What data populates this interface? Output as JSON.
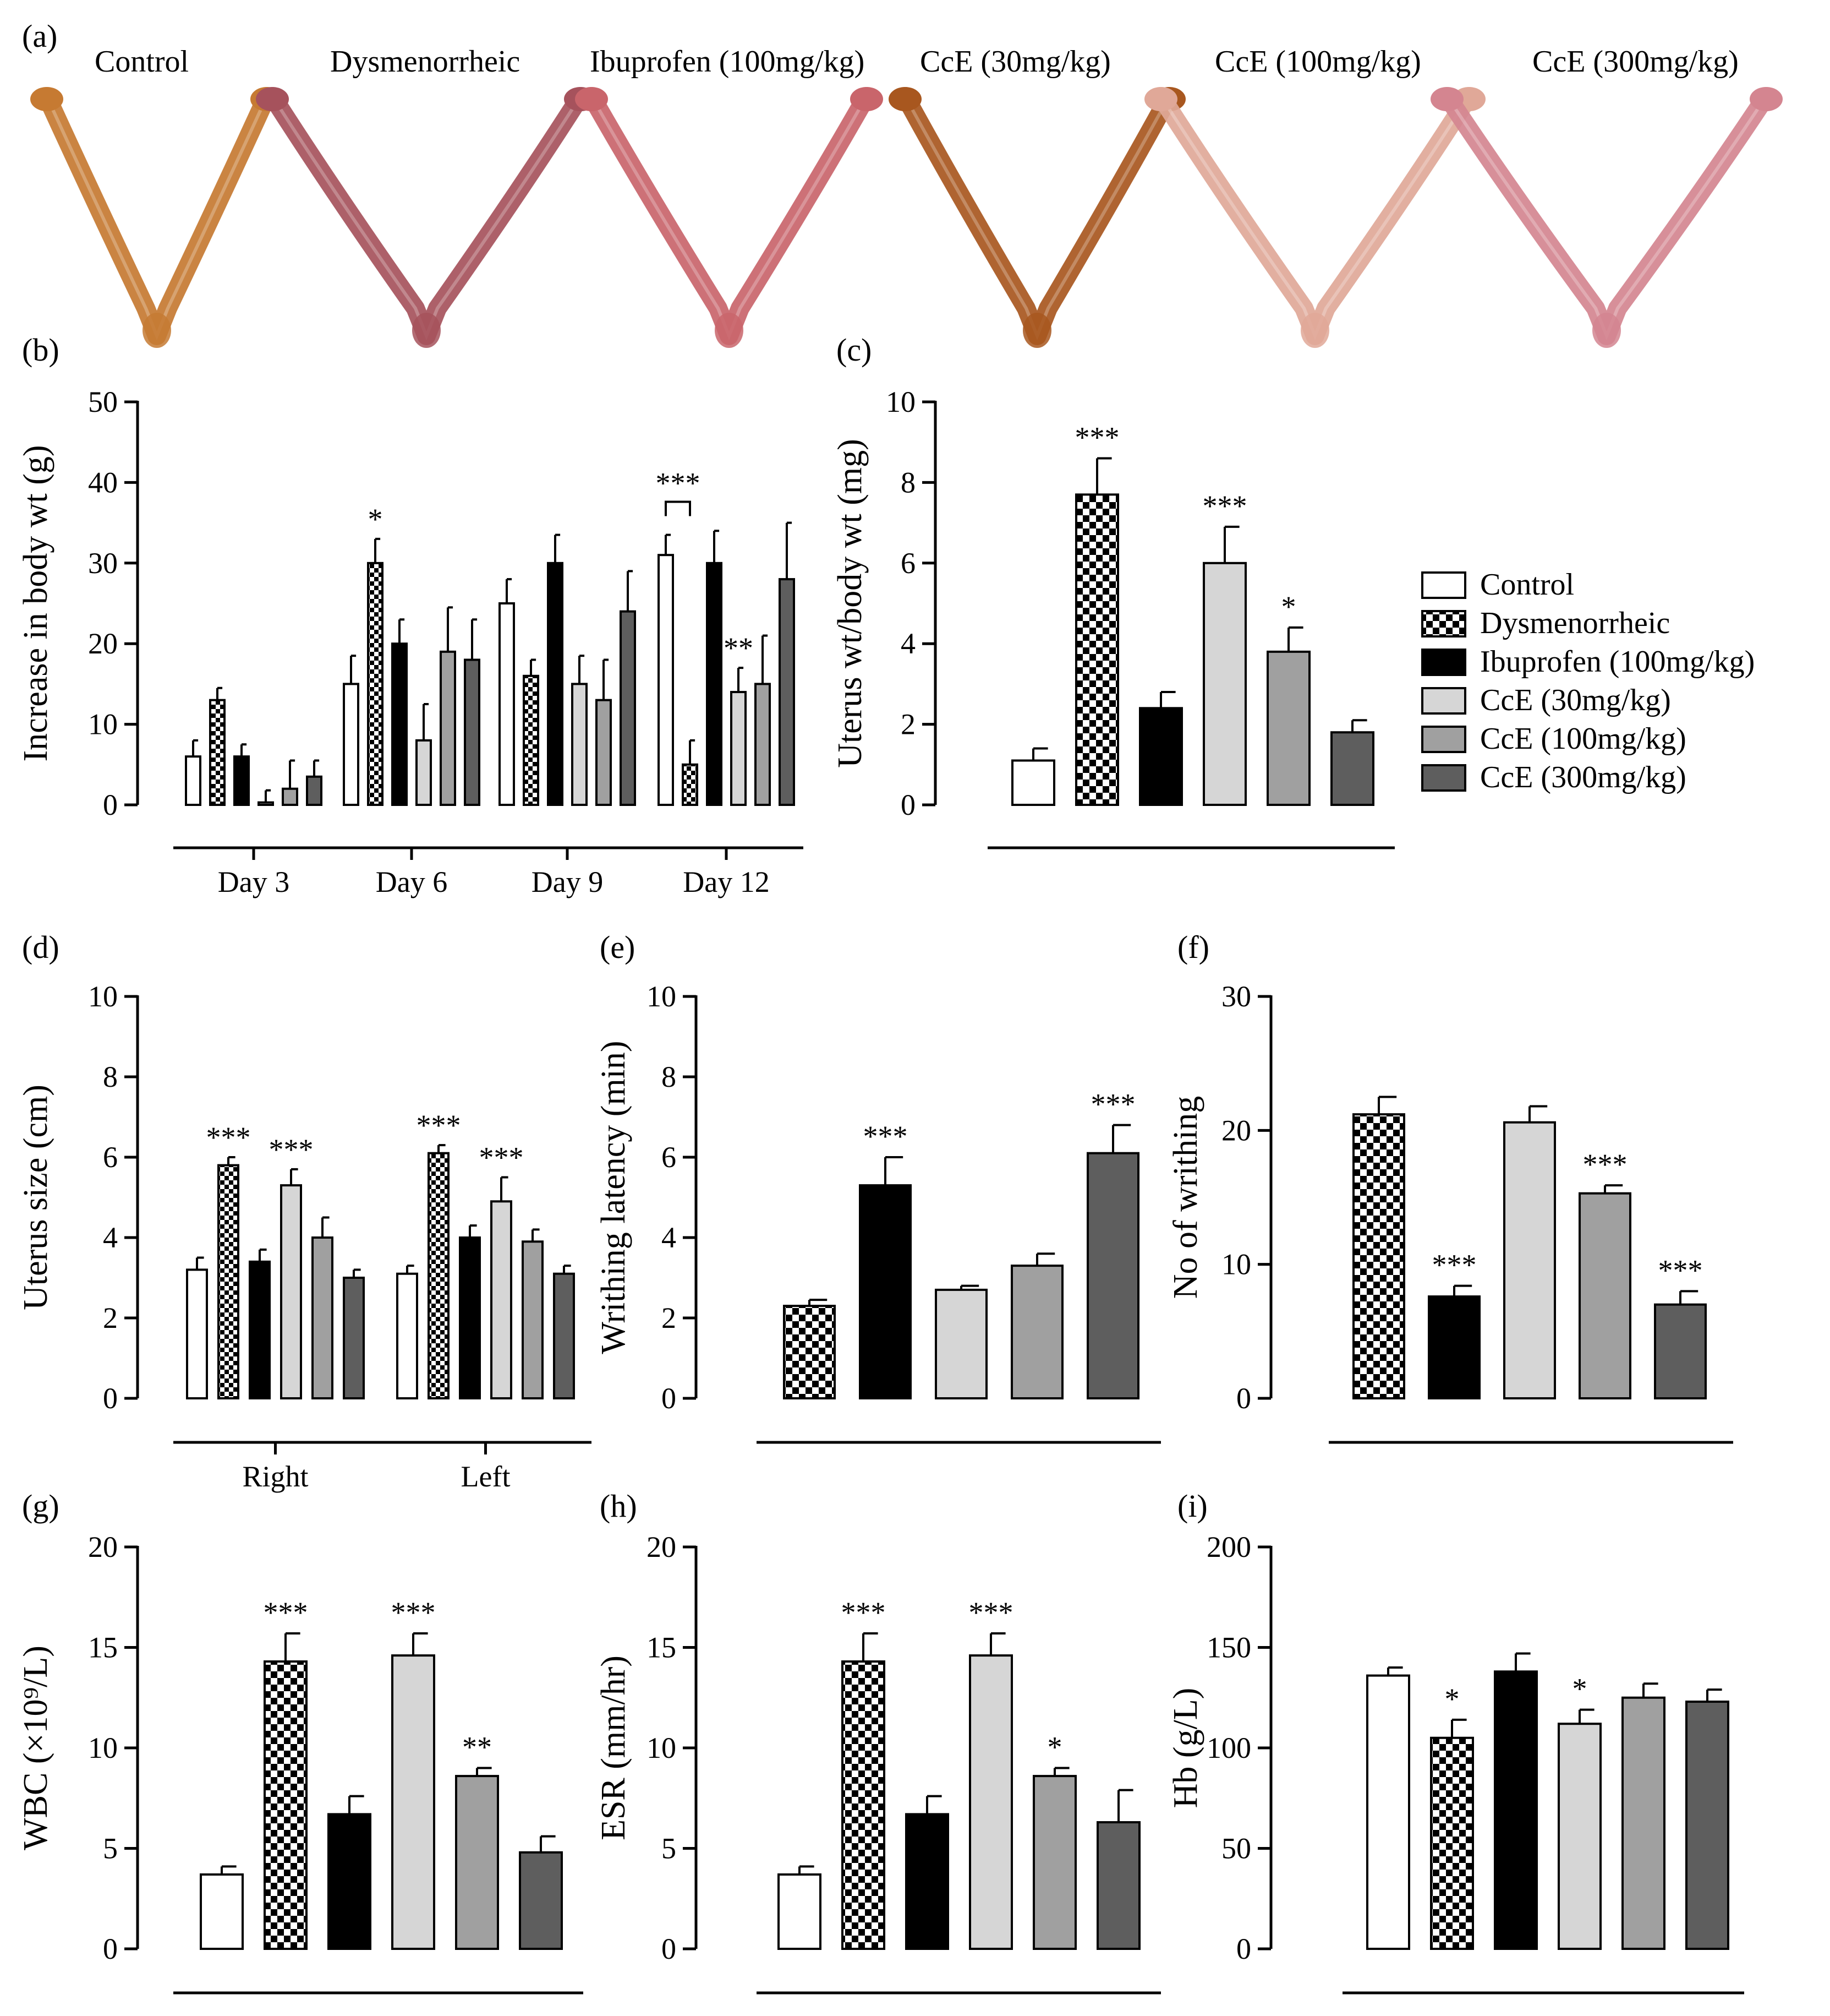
{
  "figure": {
    "photo_panel": {
      "letter": "(a)",
      "labels": [
        "Control",
        "Dysmenorrheic",
        "Ibuprofen (100mg/kg)",
        "CcE (30mg/kg)",
        "CcE (100mg/kg)",
        "CcE (300mg/kg)"
      ],
      "tissue_colors": [
        "#c67a32",
        "#a6525c",
        "#c9656b",
        "#a8571f",
        "#e0a898",
        "#d48590"
      ]
    },
    "groups": [
      "Control",
      "Dysmenorrheic",
      "Ibuprofen (100mg/kg)",
      "CcE (30mg/kg)",
      "CcE (100mg/kg)",
      "CcE (300mg/kg)"
    ],
    "fills": [
      "#ffffff",
      "checker",
      "#000000",
      "#d6d6d6",
      "#a0a0a0",
      "#5e5e5e"
    ],
    "legend_entries": [
      "Control",
      "Dysmenorrheic",
      "Ibuprofen (100mg/kg)",
      "CcE (30mg/kg)",
      "CcE (100mg/kg)",
      "CcE (300mg/kg)"
    ]
  },
  "chart_data": [
    {
      "id": "b",
      "letter": "(b)",
      "type": "bar",
      "ylabel": "Increase in body wt (g)",
      "ylim": [
        0,
        50
      ],
      "yticks": [
        0,
        10,
        20,
        30,
        40,
        50
      ],
      "categories": [
        "Day 3",
        "Day 6",
        "Day 9",
        "Day 12"
      ],
      "series": [
        {
          "name": "Control",
          "values": [
            6,
            15,
            25,
            31
          ],
          "errors": [
            2,
            3.5,
            3,
            2.5
          ]
        },
        {
          "name": "Dysmenorrheic",
          "values": [
            13,
            30,
            16,
            5
          ],
          "errors": [
            1.5,
            3,
            2,
            3
          ]
        },
        {
          "name": "Ibuprofen (100mg/kg)",
          "values": [
            6,
            20,
            30,
            30
          ],
          "errors": [
            1.5,
            3,
            3.5,
            4
          ]
        },
        {
          "name": "CcE (30mg/kg)",
          "values": [
            0.3,
            8,
            15,
            14
          ],
          "errors": [
            1.5,
            4.5,
            3.5,
            3
          ]
        },
        {
          "name": "CcE (100mg/kg)",
          "values": [
            2,
            19,
            13,
            15
          ],
          "errors": [
            3.5,
            5.5,
            5,
            6
          ]
        },
        {
          "name": "CcE (300mg/kg)",
          "values": [
            3.5,
            18,
            24,
            28
          ],
          "errors": [
            2,
            5,
            5,
            7
          ]
        }
      ],
      "stars": [
        {
          "group": 1,
          "series": 1,
          "text": "*"
        },
        {
          "group": 3,
          "series": 3,
          "text": "**"
        }
      ],
      "bracket": {
        "group": 3,
        "from": 0,
        "to": 1,
        "text": "***"
      }
    },
    {
      "id": "c",
      "letter": "(c)",
      "type": "bar",
      "ylabel": "Uterus wt/body wt (mg)",
      "ylim": [
        0,
        10
      ],
      "yticks": [
        0,
        2,
        4,
        6,
        8,
        10
      ],
      "categories": [
        "Control",
        "Dysmenorrheic",
        "Ibuprofen (100mg/kg)",
        "CcE (30mg/kg)",
        "CcE (100mg/kg)",
        "CcE (300mg/kg)"
      ],
      "fill_index": [
        0,
        1,
        2,
        3,
        4,
        5
      ],
      "values": [
        1.1,
        7.7,
        2.4,
        6.0,
        3.8,
        1.8
      ],
      "errors": [
        0.3,
        0.9,
        0.4,
        0.9,
        0.6,
        0.3
      ],
      "stars": [
        "",
        "***",
        "",
        "***",
        "*",
        ""
      ]
    },
    {
      "id": "d",
      "letter": "(d)",
      "type": "bar",
      "ylabel": "Uterus size (cm)",
      "ylim": [
        0,
        10
      ],
      "yticks": [
        0,
        2,
        4,
        6,
        8,
        10
      ],
      "categories": [
        "Right",
        "Left"
      ],
      "series": [
        {
          "name": "Control",
          "values": [
            3.2,
            3.1
          ],
          "errors": [
            0.3,
            0.2
          ]
        },
        {
          "name": "Dysmenorrheic",
          "values": [
            5.8,
            6.1
          ],
          "errors": [
            0.2,
            0.2
          ]
        },
        {
          "name": "Ibuprofen (100mg/kg)",
          "values": [
            3.4,
            4.0
          ],
          "errors": [
            0.3,
            0.3
          ]
        },
        {
          "name": "CcE (30mg/kg)",
          "values": [
            5.3,
            4.9
          ],
          "errors": [
            0.4,
            0.6
          ]
        },
        {
          "name": "CcE (100mg/kg)",
          "values": [
            4.0,
            3.9
          ],
          "errors": [
            0.5,
            0.3
          ]
        },
        {
          "name": "CcE (300mg/kg)",
          "values": [
            3.0,
            3.1
          ],
          "errors": [
            0.2,
            0.2
          ]
        }
      ],
      "stars": [
        {
          "group": 0,
          "series": 1,
          "text": "***"
        },
        {
          "group": 0,
          "series": 3,
          "text": "***"
        },
        {
          "group": 1,
          "series": 1,
          "text": "***"
        },
        {
          "group": 1,
          "series": 3,
          "text": "***"
        }
      ]
    },
    {
      "id": "e",
      "letter": "(e)",
      "type": "bar",
      "ylabel": "Writhing latency (min)",
      "ylim": [
        0,
        10
      ],
      "yticks": [
        0,
        2,
        4,
        6,
        8,
        10
      ],
      "categories": [
        "Dysmenorrheic",
        "Ibuprofen (100mg/kg)",
        "CcE (30mg/kg)",
        "CcE (100mg/kg)",
        "CcE (300mg/kg)"
      ],
      "fill_index": [
        1,
        2,
        3,
        4,
        5
      ],
      "values": [
        2.3,
        5.3,
        2.7,
        3.3,
        6.1
      ],
      "errors": [
        0.15,
        0.7,
        0.1,
        0.3,
        0.7
      ],
      "stars": [
        "",
        "***",
        "",
        "",
        "***"
      ]
    },
    {
      "id": "f",
      "letter": "(f)",
      "type": "bar",
      "ylabel": "No of writhing",
      "ylim": [
        0,
        30
      ],
      "yticks": [
        0,
        10,
        20,
        30
      ],
      "categories": [
        "Dysmenorrheic",
        "Ibuprofen (100mg/kg)",
        "CcE (30mg/kg)",
        "CcE (100mg/kg)",
        "CcE (300mg/kg)"
      ],
      "fill_index": [
        1,
        2,
        3,
        4,
        5
      ],
      "values": [
        21.2,
        7.6,
        20.6,
        15.3,
        7.0
      ],
      "errors": [
        1.3,
        0.8,
        1.2,
        0.6,
        1.0
      ],
      "stars": [
        "",
        "***",
        "",
        "***",
        "***"
      ]
    },
    {
      "id": "g",
      "letter": "(g)",
      "type": "bar",
      "ylabel": "WBC (×10⁹/L)",
      "ylim": [
        0,
        20
      ],
      "yticks": [
        0,
        5,
        10,
        15,
        20
      ],
      "categories": [
        "Control",
        "Dysmenorrheic",
        "Ibuprofen (100mg/kg)",
        "CcE (30mg/kg)",
        "CcE (100mg/kg)",
        "CcE (300mg/kg)"
      ],
      "fill_index": [
        0,
        1,
        2,
        3,
        4,
        5
      ],
      "values": [
        3.7,
        14.3,
        6.7,
        14.6,
        8.6,
        4.8
      ],
      "errors": [
        0.4,
        1.4,
        0.9,
        1.1,
        0.4,
        0.8
      ],
      "stars": [
        "",
        "***",
        "",
        "***",
        "**",
        ""
      ]
    },
    {
      "id": "h",
      "letter": "(h)",
      "type": "bar",
      "ylabel": "ESR (mm/hr)",
      "ylim": [
        0,
        20
      ],
      "yticks": [
        0,
        5,
        10,
        15,
        20
      ],
      "categories": [
        "Control",
        "Dysmenorrheic",
        "Ibuprofen (100mg/kg)",
        "CcE (30mg/kg)",
        "CcE (100mg/kg)",
        "CcE (300mg/kg)"
      ],
      "fill_index": [
        0,
        1,
        2,
        3,
        4,
        5
      ],
      "values": [
        3.7,
        14.3,
        6.7,
        14.6,
        8.6,
        6.3
      ],
      "errors": [
        0.4,
        1.4,
        0.9,
        1.1,
        0.4,
        1.6
      ],
      "stars": [
        "",
        "***",
        "",
        "***",
        "*",
        ""
      ]
    },
    {
      "id": "i",
      "letter": "(i)",
      "type": "bar",
      "ylabel": "Hb (g/L)",
      "ylim": [
        0,
        200
      ],
      "yticks": [
        0,
        50,
        100,
        150,
        200
      ],
      "categories": [
        "Control",
        "Dysmenorrheic",
        "Ibuprofen (100mg/kg)",
        "CcE (30mg/kg)",
        "CcE (100mg/kg)",
        "CcE (300mg/kg)"
      ],
      "fill_index": [
        0,
        1,
        2,
        3,
        4,
        5
      ],
      "values": [
        136,
        105,
        138,
        112,
        125,
        123
      ],
      "errors": [
        4,
        9,
        9,
        7,
        7,
        6
      ],
      "stars": [
        "",
        "*",
        "",
        "*",
        "",
        ""
      ]
    }
  ]
}
